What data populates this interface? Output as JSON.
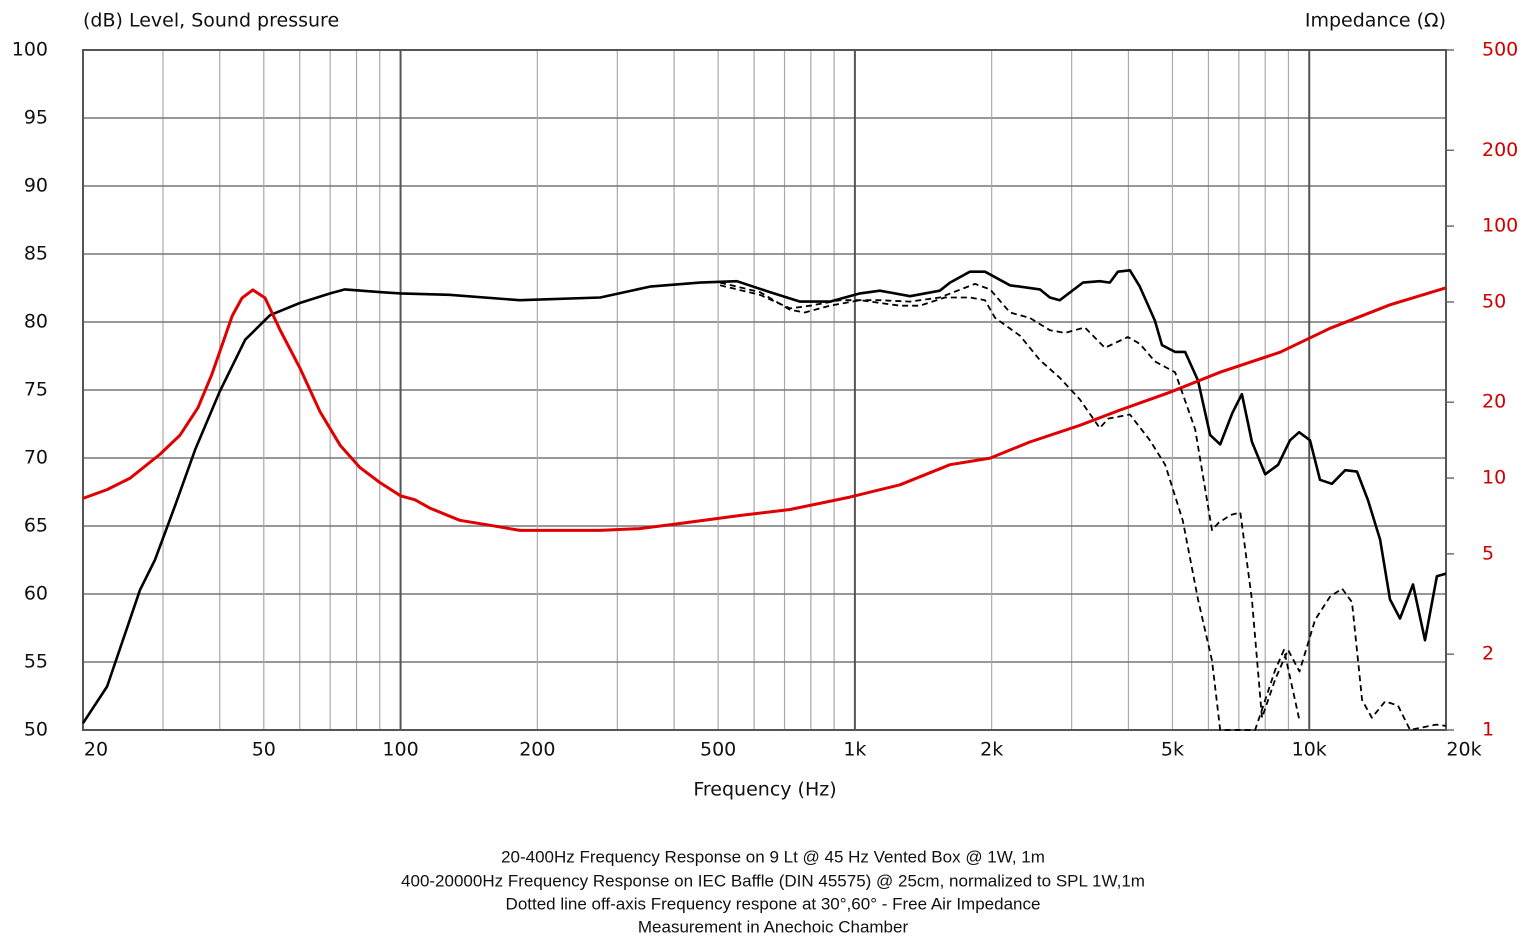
{
  "chart_data": {
    "type": "line",
    "title_left": "(dB)  Level, Sound pressure",
    "title_right": "Impedance  (Ω)",
    "x_label": "Frequency  (Hz)",
    "notes": [
      "20-400Hz Frequency Response on 9 Lt @ 45 Hz Vented Box @ 1W, 1m",
      "400-20000Hz Frequency Response on   IEC Baffle (DIN 45575) @ 25cm, normalized to SPL 1W,1m",
      "Dotted line off-axis Frequency respone at 30°,60°  -    Free Air Impedance",
      "Measurement in Anechoic Chamber"
    ],
    "x_log": true,
    "y2_log": true,
    "grid": true,
    "xlim": [
      20,
      20000
    ],
    "xticks": [
      20,
      50,
      100,
      200,
      500,
      {
        "value": 1000,
        "label": "1k"
      },
      {
        "value": 2000,
        "label": "2k"
      },
      {
        "value": 5000,
        "label": "5k"
      },
      {
        "value": 10000,
        "label": "10k"
      },
      {
        "value": 20000,
        "label": "20k"
      }
    ],
    "x_minor_ticks": [
      30,
      40,
      60,
      70,
      80,
      90,
      300,
      400,
      600,
      700,
      800,
      900,
      3000,
      4000,
      6000,
      7000,
      8000,
      9000
    ],
    "ylim": [
      50,
      100
    ],
    "yticks": [
      50,
      55,
      60,
      65,
      70,
      75,
      80,
      85,
      90,
      95,
      100
    ],
    "y2lim": [
      1,
      500
    ],
    "y2ticks": [
      1,
      2,
      5,
      10,
      20,
      50,
      100,
      200,
      500
    ],
    "y2_color": "#d00000",
    "series": [
      {
        "color": "#000000",
        "dash": false,
        "axis": "y",
        "x": [
          20,
          22.6,
          26.7,
          28.8,
          31.9,
          35.3,
          40,
          45.5,
          51.6,
          60,
          70,
          75.4,
          90,
          100,
          128,
          183,
          275,
          354,
          456,
          550,
          650,
          757,
          881,
          1026,
          1135,
          1322,
          1538,
          1619,
          1791,
          1934,
          2195,
          2554,
          2687,
          2825,
          3176,
          3460,
          3640,
          3793,
          4030,
          4237,
          4573,
          4742,
          5067,
          5330,
          5690,
          6050,
          6370,
          6770,
          7110,
          7480,
          8000,
          8540,
          9070,
          9500,
          10040,
          10560,
          11220,
          12000,
          12740,
          13470,
          14320,
          15060,
          15840,
          16920,
          17980,
          19100,
          20000
        ],
        "values": [
          50.5,
          53.2,
          60.3,
          62.5,
          66.5,
          70.6,
          74.9,
          78.7,
          80.5,
          81.4,
          82.1,
          82.4,
          82.2,
          82.1,
          82,
          81.6,
          81.8,
          82.6,
          82.9,
          83,
          82.2,
          81.5,
          81.5,
          82.1,
          82.3,
          81.9,
          82.3,
          82.9,
          83.7,
          83.7,
          82.7,
          82.4,
          81.8,
          81.6,
          82.9,
          83,
          82.9,
          83.7,
          83.8,
          82.6,
          80.1,
          78.3,
          77.8,
          77.8,
          75.7,
          71.7,
          71,
          73.3,
          74.7,
          71.2,
          68.8,
          69.5,
          71.3,
          71.9,
          71.3,
          68.4,
          68.1,
          69.1,
          69,
          66.9,
          64,
          59.6,
          58.2,
          60.7,
          56.6,
          61.3,
          61.5
        ]
      },
      {
        "color": "#000000",
        "dash": true,
        "axis": "y",
        "x": [
          505,
          618,
          720,
          797,
          927,
          1135,
          1322,
          1538,
          1838,
          1984,
          2195,
          2427,
          2687,
          2900,
          3207,
          3550,
          3990,
          4237,
          4573,
          5067,
          5610,
          6110,
          6300,
          6700,
          7050,
          7480,
          7870,
          8410,
          8980,
          9520,
          10300,
          11110,
          11810,
          12420,
          13070,
          13740,
          14690,
          15670,
          16670,
          19010,
          20000
        ],
        "values": [
          82.7,
          82,
          81,
          81.2,
          81.6,
          81.6,
          81.5,
          81.8,
          82.8,
          82.4,
          80.7,
          80.3,
          79.4,
          79.2,
          79.6,
          78.1,
          78.9,
          78.4,
          77.1,
          76.3,
          72.1,
          64.7,
          65.2,
          65.8,
          66,
          59.6,
          50.9,
          53.7,
          55.9,
          54.3,
          58.1,
          59.8,
          60.4,
          59.4,
          52.2,
          50.9,
          52.1,
          51.8,
          50,
          50.4,
          50.3
        ]
      },
      {
        "color": "#000000",
        "dash": true,
        "axis": "y",
        "x": [
          505,
          618,
          720,
          776,
          881,
          1026,
          1257,
          1390,
          1578,
          1791,
          1934,
          2035,
          2308,
          2554,
          2825,
          3127,
          3460,
          3610,
          4030,
          4460,
          4820,
          5270,
          5690,
          6110,
          6370,
          7600,
          7870,
          8410,
          8800,
          9520
        ],
        "values": [
          82.9,
          82.2,
          80.9,
          80.7,
          81.2,
          81.6,
          81.2,
          81.2,
          81.8,
          81.8,
          81.6,
          80.3,
          79,
          77.2,
          75.9,
          74.3,
          72.2,
          72.9,
          73.2,
          71.3,
          69.5,
          65.4,
          59.6,
          55.1,
          50,
          50,
          51.5,
          54.4,
          55.9,
          50.7
        ]
      },
      {
        "color": "#e00000",
        "dash": false,
        "axis": "y2",
        "x": [
          20,
          22.6,
          25.4,
          29.5,
          32.7,
          35.8,
          38.4,
          40.5,
          42.6,
          44.8,
          47.3,
          50.3,
          54.3,
          60,
          66.5,
          73.6,
          81.4,
          90,
          100,
          107.6,
          116,
          135,
          157,
          183,
          224,
          275,
          336,
          412,
          558,
          720,
          975,
          1257,
          1619,
          1984,
          2427,
          3127,
          3830,
          4932,
          6370,
          8630,
          11110,
          15060,
          20000
        ],
        "values": [
          8.3,
          9,
          10,
          12.4,
          14.8,
          19,
          25.7,
          33.8,
          44,
          51.9,
          55.8,
          51.9,
          38.7,
          27.4,
          18.3,
          13.5,
          11,
          9.6,
          8.5,
          8.2,
          7.6,
          6.8,
          6.5,
          6.2,
          6.2,
          6.2,
          6.3,
          6.6,
          7.1,
          7.5,
          8.4,
          9.4,
          11.3,
          12,
          13.9,
          16.2,
          18.6,
          21.9,
          26.3,
          31.6,
          39.3,
          48.7,
          56.9
        ]
      }
    ]
  }
}
